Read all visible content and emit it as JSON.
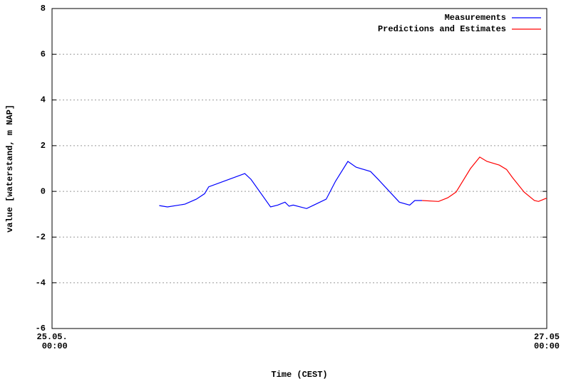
{
  "chart_data": {
    "type": "line",
    "xlabel": "Time (CEST)",
    "ylabel": "value [waterstand, m NAP]",
    "xlim": [
      0,
      48
    ],
    "xticks": [
      {
        "value": 0,
        "label": "25.05.\n00:00"
      },
      {
        "value": 48,
        "label": "27.05\n00:00"
      }
    ],
    "ylim": [
      -6,
      8
    ],
    "yticks": [
      -6,
      -4,
      -2,
      0,
      2,
      4,
      6,
      8
    ],
    "grid": true,
    "legend": "upper right",
    "series": [
      {
        "name": "Measurements",
        "color": "#0000ff",
        "x": [
          10.4,
          11.2,
          12.9,
          14.0,
          14.8,
          15.2,
          18.7,
          19.3,
          21.2,
          21.9,
          22.6,
          23.0,
          23.4,
          24.7,
          25.4,
          26.6,
          27.5,
          28.7,
          29.5,
          30.9,
          31.7,
          33.7,
          34.7,
          35.2,
          35.9
        ],
        "values": [
          -0.62,
          -0.68,
          -0.56,
          -0.34,
          -0.1,
          0.2,
          0.78,
          0.53,
          -0.68,
          -0.6,
          -0.47,
          -0.65,
          -0.6,
          -0.75,
          -0.6,
          -0.34,
          0.44,
          1.31,
          1.06,
          0.87,
          0.5,
          -0.47,
          -0.6,
          -0.4,
          -0.4
        ]
      },
      {
        "name": "Predictions and Estimates",
        "color": "#ff0000",
        "x": [
          35.9,
          37.5,
          38.4,
          39.2,
          40.6,
          41.5,
          42.2,
          43.4,
          44.1,
          44.7,
          45.8,
          46.8,
          47.2,
          47.9,
          48
        ],
        "values": [
          -0.4,
          -0.44,
          -0.28,
          -0.03,
          1.0,
          1.5,
          1.31,
          1.15,
          0.96,
          0.59,
          -0.03,
          -0.4,
          -0.44,
          -0.31,
          -0.31
        ]
      }
    ]
  }
}
